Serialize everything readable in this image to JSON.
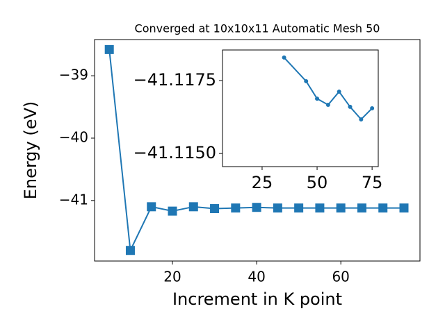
{
  "chart_data": [
    {
      "type": "line",
      "title": "Converged at 10x10x11 Automatic Mesh 50",
      "xlabel": "Increment in K point",
      "ylabel": "Energy (eV)",
      "x": [
        5,
        10,
        15,
        20,
        25,
        30,
        35,
        40,
        45,
        50,
        55,
        60,
        65,
        70,
        75
      ],
      "series": [
        {
          "color": "#1f77b4",
          "marker": "square",
          "values": [
            -38.58,
            -41.8,
            -41.1,
            -41.17,
            -41.1,
            -41.13,
            -41.12,
            -41.11,
            -41.12,
            -41.12,
            -41.12,
            -41.12,
            -41.12,
            -41.12,
            -41.12
          ]
        }
      ],
      "xlim": [
        1.5,
        78.8
      ],
      "ylim": [
        -41.97,
        -38.42
      ],
      "xticks": [
        20,
        40,
        60
      ],
      "yticks": [
        {
          "value": -41,
          "label": "−41"
        },
        {
          "value": -40,
          "label": "−40"
        },
        {
          "value": -39,
          "label": "−39"
        }
      ]
    },
    {
      "type": "line",
      "x": [
        35,
        45,
        50,
        55,
        60,
        65,
        70,
        75
      ],
      "series": [
        {
          "color": "#1f77b4",
          "marker": "circle",
          "values": [
            -41.11829,
            -41.11748,
            -41.11688,
            -41.11667,
            -41.11712,
            -41.1166,
            -41.11617,
            -41.11655
          ]
        }
      ],
      "xlim": [
        7,
        77.8
      ],
      "ylim": [
        -41.11455,
        -41.11855
      ],
      "xticks": [
        25,
        50,
        75
      ],
      "yticks": [
        {
          "value": -41.115,
          "label": "−41.1150"
        },
        {
          "value": -41.1175,
          "label": "−41.1175"
        }
      ]
    }
  ]
}
